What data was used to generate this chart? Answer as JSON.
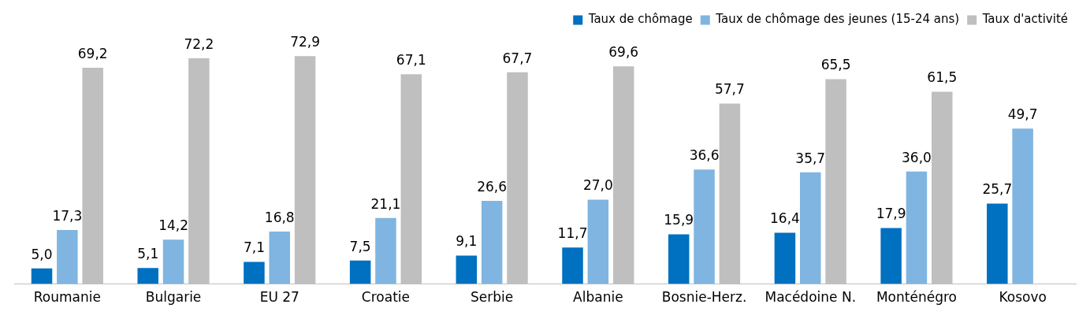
{
  "chart_data": {
    "type": "bar",
    "categories": [
      "Roumanie",
      "Bulgarie",
      "EU 27",
      "Croatie",
      "Serbie",
      "Albanie",
      "Bosnie-Herz.",
      "Macédoine N.",
      "Monténégro",
      "Kosovo"
    ],
    "series": [
      {
        "name": "Taux de chômage",
        "color": "#0070c0",
        "values": [
          5.0,
          5.1,
          7.1,
          7.5,
          9.1,
          11.7,
          15.9,
          16.4,
          17.9,
          25.7
        ],
        "value_labels": [
          "5,0",
          "5,1",
          "7,1",
          "7,5",
          "9,1",
          "11,7",
          "15,9",
          "16,4",
          "17,9",
          "25,7"
        ]
      },
      {
        "name": "Taux de chômage des jeunes (15-24 ans)",
        "color": "#7fb5e0",
        "values": [
          17.3,
          14.2,
          16.8,
          21.1,
          26.6,
          27.0,
          36.6,
          35.7,
          36.0,
          49.7
        ],
        "value_labels": [
          "17,3",
          "14,2",
          "16,8",
          "21,1",
          "26,6",
          "27,0",
          "36,6",
          "35,7",
          "36,0",
          "49,7"
        ]
      },
      {
        "name": "Taux d'activité",
        "color": "#bfbfbf",
        "values": [
          69.2,
          72.2,
          72.9,
          67.1,
          67.7,
          69.6,
          57.7,
          65.5,
          61.5,
          null
        ],
        "value_labels": [
          "69,2",
          "72,2",
          "72,9",
          "67,1",
          "67,7",
          "69,6",
          "57,7",
          "65,5",
          "61,5",
          null
        ]
      }
    ],
    "legend": "top right",
    "grid": false,
    "tick_labels": "x"
  }
}
